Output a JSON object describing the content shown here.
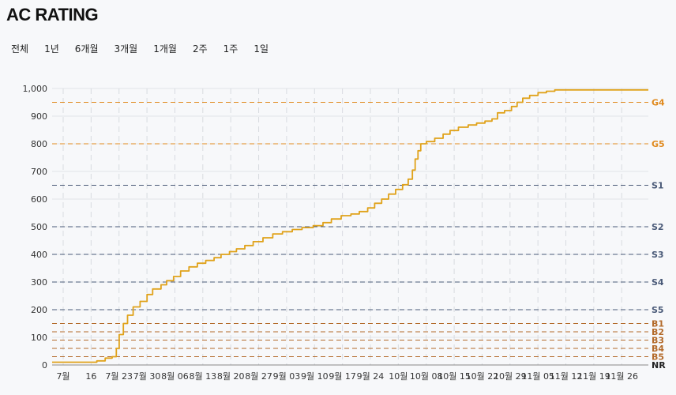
{
  "header": {
    "title": "AC RATING"
  },
  "ranges": [
    "전체",
    "1년",
    "6개월",
    "3개월",
    "1개월",
    "2주",
    "1주",
    "1일"
  ],
  "colors": {
    "line": "#e0a21a",
    "gold": "#e08a1e",
    "silver": "#4a5a78",
    "bronze": "#b36a2a",
    "grid": "#e2e4e8"
  },
  "chart_data": {
    "type": "line",
    "title": "AC RATING",
    "xlabel": "",
    "ylabel": "",
    "ylim": [
      0,
      1000
    ],
    "y_ticks": [
      0,
      100,
      200,
      300,
      400,
      500,
      600,
      700,
      800,
      900,
      1000
    ],
    "y_tick_labels": [
      "0",
      "100",
      "200",
      "300",
      "400",
      "500",
      "600",
      "700",
      "800",
      "900",
      "1,000"
    ],
    "x_tick_labels": [
      "7월",
      "16",
      "7월 23",
      "7월 30",
      "8월 06",
      "8월 13",
      "8월 20",
      "8월 27",
      "9월 03",
      "9월 10",
      "9월 17",
      "9월 24",
      "10월",
      "10월 08",
      "10월 15",
      "10월 22",
      "10월 29",
      "11월 05",
      "11월 12",
      "11월 19",
      "11월 26"
    ],
    "x_domain": [
      0,
      21.35
    ],
    "series": [
      {
        "points": [
          [
            0,
            10
          ],
          [
            1.2,
            10
          ],
          [
            1.6,
            15
          ],
          [
            1.9,
            25
          ],
          [
            2.15,
            30
          ],
          [
            2.3,
            60
          ],
          [
            2.4,
            110
          ],
          [
            2.55,
            150
          ],
          [
            2.7,
            180
          ],
          [
            2.9,
            210
          ],
          [
            3.15,
            230
          ],
          [
            3.4,
            255
          ],
          [
            3.6,
            275
          ],
          [
            3.9,
            290
          ],
          [
            4.1,
            305
          ],
          [
            4.35,
            320
          ],
          [
            4.6,
            340
          ],
          [
            4.9,
            355
          ],
          [
            5.2,
            368
          ],
          [
            5.5,
            378
          ],
          [
            5.8,
            388
          ],
          [
            6.05,
            400
          ],
          [
            6.35,
            410
          ],
          [
            6.6,
            420
          ],
          [
            6.9,
            432
          ],
          [
            7.2,
            446
          ],
          [
            7.55,
            460
          ],
          [
            7.9,
            474
          ],
          [
            8.25,
            482
          ],
          [
            8.6,
            490
          ],
          [
            8.95,
            497
          ],
          [
            9.35,
            504
          ],
          [
            9.7,
            515
          ],
          [
            10.0,
            528
          ],
          [
            10.35,
            540
          ],
          [
            10.7,
            546
          ],
          [
            11.0,
            555
          ],
          [
            11.3,
            568
          ],
          [
            11.55,
            585
          ],
          [
            11.8,
            600
          ],
          [
            12.05,
            618
          ],
          [
            12.3,
            635
          ],
          [
            12.55,
            652
          ],
          [
            12.75,
            672
          ],
          [
            12.9,
            705
          ],
          [
            13.0,
            745
          ],
          [
            13.1,
            775
          ],
          [
            13.2,
            800
          ],
          [
            13.4,
            808
          ],
          [
            13.7,
            820
          ],
          [
            14.0,
            835
          ],
          [
            14.25,
            848
          ],
          [
            14.55,
            860
          ],
          [
            14.9,
            868
          ],
          [
            15.2,
            875
          ],
          [
            15.5,
            882
          ],
          [
            15.75,
            890
          ],
          [
            15.95,
            912
          ],
          [
            16.2,
            920
          ],
          [
            16.45,
            935
          ],
          [
            16.65,
            950
          ],
          [
            16.85,
            965
          ],
          [
            17.1,
            975
          ],
          [
            17.4,
            985
          ],
          [
            17.7,
            990
          ],
          [
            18.0,
            995
          ],
          [
            21.35,
            995
          ]
        ]
      }
    ],
    "reference_lines": [
      {
        "label": "G4",
        "value": 950,
        "tier": "gold"
      },
      {
        "label": "G5",
        "value": 800,
        "tier": "gold"
      },
      {
        "label": "S1",
        "value": 650,
        "tier": "silver"
      },
      {
        "label": "S2",
        "value": 500,
        "tier": "silver"
      },
      {
        "label": "S3",
        "value": 400,
        "tier": "silver"
      },
      {
        "label": "S4",
        "value": 300,
        "tier": "silver"
      },
      {
        "label": "S5",
        "value": 200,
        "tier": "silver"
      },
      {
        "label": "B1",
        "value": 150,
        "tier": "bronze"
      },
      {
        "label": "B2",
        "value": 120,
        "tier": "bronze"
      },
      {
        "label": "B3",
        "value": 90,
        "tier": "bronze"
      },
      {
        "label": "B4",
        "value": 60,
        "tier": "bronze"
      },
      {
        "label": "B5",
        "value": 30,
        "tier": "bronze"
      },
      {
        "label": "NR",
        "value": 0,
        "tier": "nr"
      }
    ],
    "grid": true,
    "legend": "none"
  }
}
